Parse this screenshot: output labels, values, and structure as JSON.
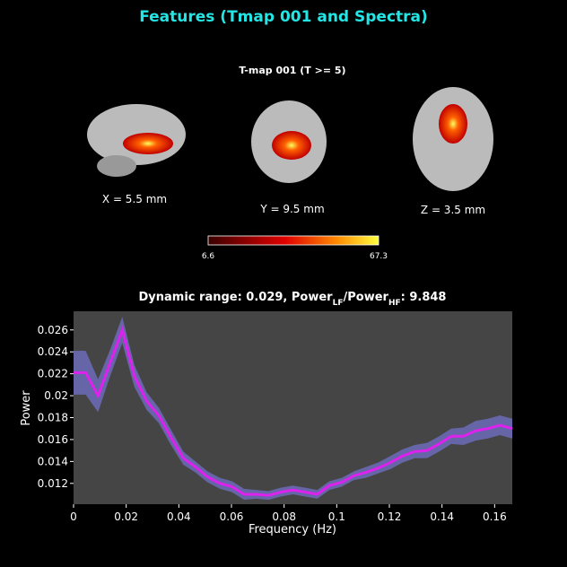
{
  "title": "Features (Tmap 001 and Spectra)",
  "tmap": {
    "title": "T-map 001 (T >= 5)",
    "views": [
      "X = 5.5 mm",
      "Y = 9.5 mm",
      "Z = 3.5 mm"
    ],
    "colorbar": {
      "min": 6.6,
      "max": 67.3
    }
  },
  "chart_data": {
    "type": "line",
    "title_parts": [
      "Dynamic range: 0.029, Power",
      "LF",
      "/Power",
      "HF",
      ": 9.848"
    ],
    "x_label": "Frequency (Hz)",
    "y_label": "Power",
    "x": [
      0,
      0.0046,
      0.0093,
      0.0139,
      0.0185,
      0.0231,
      0.0278,
      0.0324,
      0.037,
      0.0417,
      0.0463,
      0.0509,
      0.0556,
      0.0602,
      0.0648,
      0.0694,
      0.0741,
      0.0787,
      0.0833,
      0.088,
      0.0926,
      0.0972,
      0.1019,
      0.1065,
      0.1111,
      0.1157,
      0.1204,
      0.125,
      0.1296,
      0.1343,
      0.1389,
      0.1435,
      0.1481,
      0.1528,
      0.1574,
      0.162,
      0.1667
    ],
    "series": [
      {
        "color": "#dd22ee",
        "band_color": "#6b6bb8",
        "values": [
          0.0221,
          0.0221,
          0.02,
          0.023,
          0.026,
          0.0218,
          0.0195,
          0.0182,
          0.0162,
          0.0143,
          0.0135,
          0.0126,
          0.012,
          0.0117,
          0.011,
          0.011,
          0.0109,
          0.0112,
          0.0114,
          0.0112,
          0.011,
          0.0118,
          0.0121,
          0.0127,
          0.013,
          0.0134,
          0.0139,
          0.0145,
          0.0149,
          0.015,
          0.0156,
          0.0163,
          0.0163,
          0.0168,
          0.017,
          0.0173,
          0.017
        ],
        "errors": [
          0.002,
          0.002,
          0.0015,
          0.0012,
          0.0012,
          0.001,
          0.0008,
          0.0007,
          0.0007,
          0.0006,
          0.0005,
          0.0005,
          0.0005,
          0.0005,
          0.0005,
          0.0004,
          0.0004,
          0.0004,
          0.0004,
          0.0004,
          0.0004,
          0.0004,
          0.0004,
          0.0004,
          0.0005,
          0.0005,
          0.0006,
          0.0006,
          0.0006,
          0.0007,
          0.0007,
          0.0007,
          0.0008,
          0.0009,
          0.0009,
          0.0009,
          0.0009
        ]
      }
    ],
    "xlim": [
      0,
      0.1667
    ],
    "ylim": [
      0.0101,
      0.0277
    ],
    "xticks": [
      0,
      0.02,
      0.04,
      0.06,
      0.08,
      0.1,
      0.12,
      0.14,
      0.16
    ],
    "yticks": [
      0.012,
      0.014,
      0.016,
      0.018,
      0.02,
      0.022,
      0.024,
      0.026
    ]
  }
}
